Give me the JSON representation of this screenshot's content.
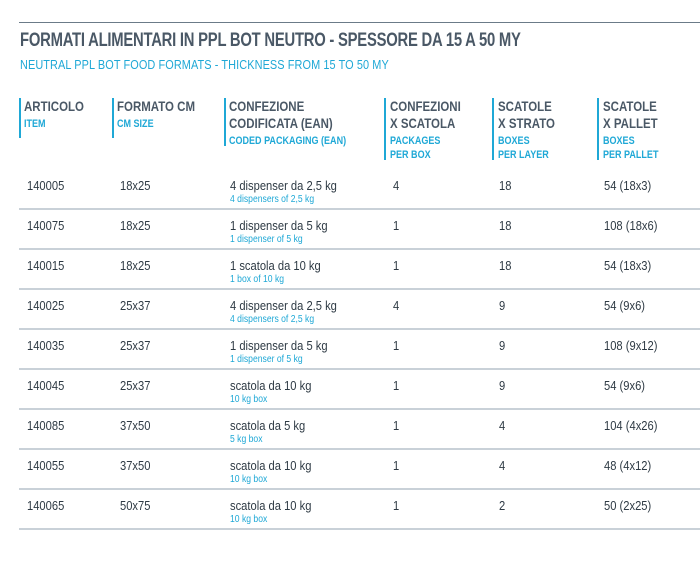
{
  "document": {
    "title": "FORMATI ALIMENTARI IN PPL BOT NEUTRO - SPESSORE DA 15 A 50 MY",
    "subtitle": "NEUTRAL PPL BOT FOOD FORMATS - THICKNESS FROM 15 TO 50 MY"
  },
  "headers": [
    {
      "it1": "ARTICOLO",
      "it2": "",
      "it3": "",
      "en1": "ITEM",
      "en2": ""
    },
    {
      "it1": "FORMATO CM",
      "it2": "",
      "it3": "",
      "en1": "CM SIZE",
      "en2": ""
    },
    {
      "it1": "CONFEZIONE",
      "it2": "CODIFICATA (EAN)",
      "it3": "",
      "en1": "CODED PACKAGING (EAN)",
      "en2": ""
    },
    {
      "it1": "CONFEZIONI",
      "it2": "X SCATOLA",
      "it3": "",
      "en1": "PACKAGES",
      "en2": "PER BOX"
    },
    {
      "it1": "SCATOLE",
      "it2": "X STRATO",
      "it3": "",
      "en1": "BOXES",
      "en2": "PER LAYER"
    },
    {
      "it1": "SCATOLE",
      "it2": "X PALLET",
      "it3": "",
      "en1": "BOXES",
      "en2": "PER PALLET"
    }
  ],
  "rows": [
    {
      "item": "140005",
      "size": "18x25",
      "pack_it": "4 dispenser da 2,5 kg",
      "pack_en": "4 dispensers of 2,5 kg",
      "per_box": "4",
      "per_layer": "18",
      "per_pallet": "54 (18x3)"
    },
    {
      "item": "140075",
      "size": "18x25",
      "pack_it": "1 dispenser da 5 kg",
      "pack_en": "1 dispenser of 5 kg",
      "per_box": "1",
      "per_layer": "18",
      "per_pallet": "108 (18x6)"
    },
    {
      "item": "140015",
      "size": "18x25",
      "pack_it": "1 scatola da 10 kg",
      "pack_en": "1 box of 10 kg",
      "per_box": "1",
      "per_layer": "18",
      "per_pallet": "54 (18x3)"
    },
    {
      "item": "140025",
      "size": "25x37",
      "pack_it": "4 dispenser da 2,5 kg",
      "pack_en": "4 dispensers of 2,5 kg",
      "per_box": "4",
      "per_layer": "9",
      "per_pallet": "54 (9x6)"
    },
    {
      "item": "140035",
      "size": "25x37",
      "pack_it": "1 dispenser da 5 kg",
      "pack_en": "1 dispenser of 5 kg",
      "per_box": "1",
      "per_layer": "9",
      "per_pallet": "108 (9x12)"
    },
    {
      "item": "140045",
      "size": "25x37",
      "pack_it": "scatola da 10 kg",
      "pack_en": "10 kg box",
      "per_box": "1",
      "per_layer": "9",
      "per_pallet": "54 (9x6)"
    },
    {
      "item": "140085",
      "size": "37x50",
      "pack_it": "scatola da 5 kg",
      "pack_en": "5 kg box",
      "per_box": "1",
      "per_layer": "4",
      "per_pallet": "104 (4x26)"
    },
    {
      "item": "140055",
      "size": "37x50",
      "pack_it": "scatola da 10 kg",
      "pack_en": "10 kg box",
      "per_box": "1",
      "per_layer": "4",
      "per_pallet": "48 (4x12)"
    },
    {
      "item": "140065",
      "size": "50x75",
      "pack_it": "scatola da 10 kg",
      "pack_en": "10 kg box",
      "per_box": "1",
      "per_layer": "2",
      "per_pallet": "50 (2x25)"
    }
  ]
}
